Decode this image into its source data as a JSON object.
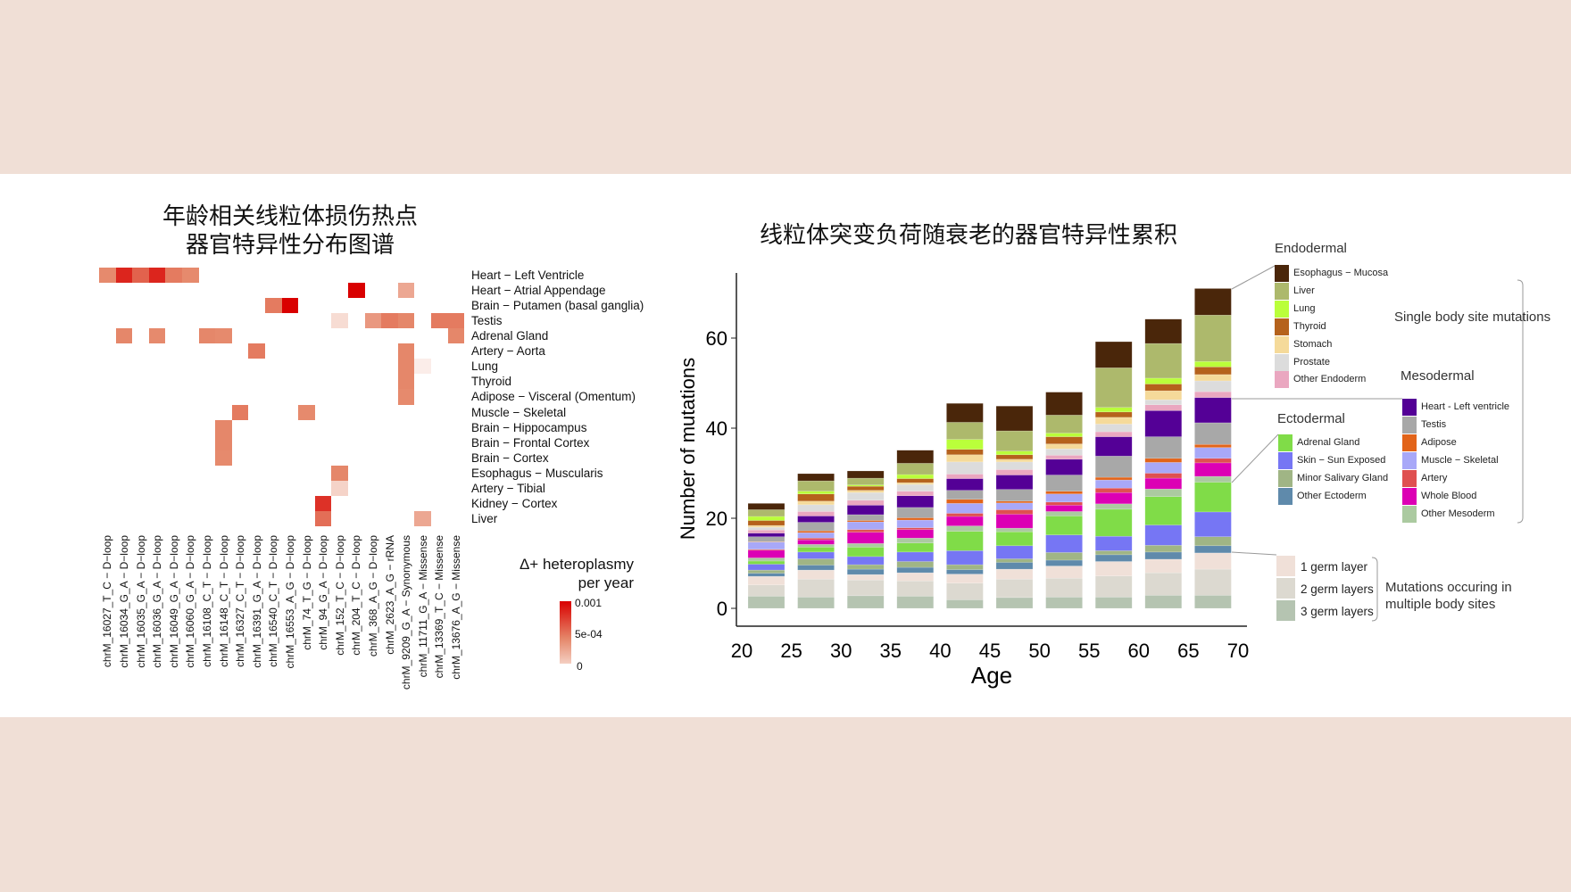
{
  "heatmap": {
    "title_line1": "年龄相关线粒体损伤热点",
    "title_line2": "器官特异性分布图谱",
    "rows": [
      "Heart − Left Ventricle",
      "Heart − Atrial Appendage",
      "Brain − Putamen (basal ganglia)",
      "Testis",
      "Adrenal Gland",
      "Artery − Aorta",
      "Lung",
      "Thyroid",
      "Adipose − Visceral (Omentum)",
      "Muscle − Skeletal",
      "Brain − Hippocampus",
      "Brain − Frontal Cortex",
      "Brain − Cortex",
      "Esophagus − Muscularis",
      "Artery − Tibial",
      "Kidney − Cortex",
      "Liver"
    ],
    "columns": [
      "chrM_16027_T_C − D−loop",
      "chrM_16034_G_A − D−loop",
      "chrM_16035_G_A − D−loop",
      "chrM_16036_G_A − D−loop",
      "chrM_16049_G_A − D−loop",
      "chrM_16060_G_A − D−loop",
      "chrM_16108_C_T − D−loop",
      "chrM_16148_C_T − D−loop",
      "chrM_16327_C_T − D−loop",
      "chrM_16391_G_A − D−loop",
      "chrM_16540_C_T − D−loop",
      "chrM_16553_A_G − D−loop",
      "chrM_74_T_G − D−loop",
      "chrM_94_G_A − D−loop",
      "chrM_152_T_C − D−loop",
      "chrM_204_T_C − D−loop",
      "chrM_368_A_G − D−loop",
      "chrM_2623_A_G − rRNA",
      "chrM_9209_G_A − Synonymous",
      "chrM_11711_G_A − Missense",
      "chrM_13369_T_C − Missense",
      "chrM_13676_A_G − Missense"
    ],
    "cells": [
      [
        0,
        0,
        0.0004
      ],
      [
        0,
        1,
        0.00085
      ],
      [
        0,
        2,
        0.0006
      ],
      [
        0,
        3,
        0.00085
      ],
      [
        0,
        4,
        0.0005
      ],
      [
        0,
        5,
        0.0004
      ],
      [
        1,
        15,
        0.001
      ],
      [
        1,
        18,
        0.0003
      ],
      [
        2,
        10,
        0.0005
      ],
      [
        2,
        11,
        0.001
      ],
      [
        3,
        14,
        0.00012
      ],
      [
        3,
        16,
        0.00035
      ],
      [
        3,
        17,
        0.0005
      ],
      [
        3,
        18,
        0.00045
      ],
      [
        3,
        20,
        0.0005
      ],
      [
        3,
        21,
        0.0005
      ],
      [
        4,
        1,
        0.00045
      ],
      [
        4,
        3,
        0.0004
      ],
      [
        4,
        6,
        0.00045
      ],
      [
        4,
        7,
        0.0004
      ],
      [
        4,
        21,
        0.00045
      ],
      [
        5,
        9,
        0.0005
      ],
      [
        5,
        18,
        0.00045
      ],
      [
        6,
        18,
        0.00045
      ],
      [
        6,
        19,
        6e-05
      ],
      [
        7,
        18,
        0.00045
      ],
      [
        8,
        18,
        0.0004
      ],
      [
        9,
        8,
        0.0005
      ],
      [
        9,
        12,
        0.0004
      ],
      [
        10,
        7,
        0.00045
      ],
      [
        11,
        7,
        0.00045
      ],
      [
        12,
        7,
        0.0004
      ],
      [
        13,
        14,
        0.00045
      ],
      [
        14,
        14,
        0.00015
      ],
      [
        15,
        13,
        0.0008
      ],
      [
        16,
        13,
        0.00055
      ],
      [
        16,
        19,
        0.0003
      ]
    ],
    "legend": {
      "title_line1": "Δ+ heteroplasmy",
      "title_line2": "per year",
      "ticks": [
        "0.001",
        "5e-04",
        "0"
      ],
      "range": [
        0,
        0.001
      ]
    },
    "colors": {
      "low": "#ffffff",
      "mid": "#e5876a",
      "high": "#d90000"
    }
  },
  "chart_data": {
    "type": "bar",
    "stacked": true,
    "title": "线粒体突变负荷随衰老的器官特异性累积",
    "xlabel": "Age",
    "ylabel": "Number of mutations",
    "x_ticks": [
      "20",
      "25",
      "30",
      "35",
      "40",
      "45",
      "50",
      "55",
      "60",
      "65",
      "70"
    ],
    "y_ticks": [
      "0",
      "20",
      "40",
      "60"
    ],
    "ylim": [
      0,
      72
    ],
    "xlim": [
      20,
      70
    ],
    "categories": [
      20,
      25,
      30,
      35,
      40,
      45,
      50,
      55,
      60,
      65
    ],
    "series": [
      {
        "name": "3 germ layers",
        "color": "#b5c4b1",
        "values": [
          2.7,
          2.5,
          2.8,
          2.7,
          1.9,
          2.4,
          2.5,
          2.5,
          2.9,
          2.9
        ]
      },
      {
        "name": "2 germ layers",
        "color": "#dcd9d0",
        "values": [
          2.5,
          4.0,
          3.5,
          3.4,
          3.7,
          4.1,
          4.2,
          4.7,
          5.0,
          5.8
        ]
      },
      {
        "name": "1 germ layer",
        "color": "#f0e0d8",
        "values": [
          1.9,
          2.0,
          1.2,
          1.8,
          2.0,
          2.2,
          2.7,
          3.2,
          3.0,
          3.6
        ]
      },
      {
        "name": "Other Ectoderm",
        "color": "#5f8aab",
        "values": [
          0.7,
          1.1,
          1.2,
          1.2,
          1.0,
          1.5,
          1.3,
          1.5,
          1.6,
          1.6
        ]
      },
      {
        "name": "Minor Salivary Gland",
        "color": "#a0b585",
        "values": [
          0.7,
          1.4,
          1.0,
          1.3,
          1.1,
          0.8,
          1.7,
          0.9,
          1.5,
          2.0
        ]
      },
      {
        "name": "Skin − Sun Exposed",
        "color": "#7676f4",
        "values": [
          1.3,
          1.5,
          1.8,
          2.1,
          3.1,
          2.9,
          3.9,
          3.2,
          4.5,
          5.5
        ]
      },
      {
        "name": "Adrenal Gland",
        "color": "#80dc48",
        "values": [
          0.7,
          1.1,
          2.1,
          2.0,
          4.3,
          3.1,
          4.2,
          6.0,
          6.3,
          6.6
        ]
      },
      {
        "name": "Other Mesoderm",
        "color": "#abcaa0",
        "values": [
          0.7,
          0.6,
          0.8,
          1.1,
          1.2,
          0.8,
          1.0,
          1.2,
          1.7,
          1.3
        ]
      },
      {
        "name": "Whole Blood",
        "color": "#dc00b4",
        "values": [
          1.7,
          1.0,
          2.5,
          1.9,
          2.1,
          3.1,
          1.4,
          2.5,
          2.4,
          3.0
        ]
      },
      {
        "name": "Artery",
        "color": "#df5050",
        "values": [
          0.2,
          0.4,
          0.6,
          0.4,
          0.7,
          1.0,
          0.7,
          1.0,
          1.1,
          1.0
        ]
      },
      {
        "name": "Muscle − Skeletal",
        "color": "#a8a8f8",
        "values": [
          1.6,
          1.2,
          1.7,
          1.7,
          2.2,
          1.5,
          1.8,
          1.8,
          2.4,
          2.4
        ]
      },
      {
        "name": "Adipose",
        "color": "#e2641a",
        "values": [
          0.1,
          0.4,
          0.3,
          0.5,
          0.9,
          0.4,
          0.6,
          0.6,
          0.9,
          0.7
        ]
      },
      {
        "name": "Testis",
        "color": "#a8a8a8",
        "values": [
          1.1,
          1.9,
          1.3,
          2.3,
          2.0,
          2.6,
          3.6,
          4.7,
          4.8,
          4.8
        ]
      },
      {
        "name": "Heart - Left ventricle",
        "color": "#540096",
        "values": [
          0.8,
          1.4,
          2.1,
          2.6,
          2.6,
          3.2,
          3.5,
          4.3,
          5.8,
          5.6
        ]
      },
      {
        "name": "Other Endoderm",
        "color": "#eaa7c0",
        "values": [
          0.7,
          1.0,
          1.1,
          1.0,
          1.0,
          1.2,
          0.9,
          1.1,
          1.3,
          1.3
        ]
      },
      {
        "name": "Prostate",
        "color": "#dcdcdc",
        "values": [
          0.6,
          1.5,
          1.7,
          1.5,
          2.7,
          1.7,
          1.4,
          1.7,
          1.1,
          2.4
        ]
      },
      {
        "name": "Stomach",
        "color": "#f5da9a",
        "values": [
          0.4,
          0.8,
          0.5,
          0.4,
          1.6,
          0.6,
          1.1,
          1.5,
          2.0,
          1.4
        ]
      },
      {
        "name": "Thyroid",
        "color": "#b5621c",
        "values": [
          1.1,
          1.6,
          0.9,
          0.9,
          1.2,
          1.0,
          1.6,
          1.2,
          1.5,
          1.7
        ]
      },
      {
        "name": "Lung",
        "color": "#baff3a",
        "values": [
          0.9,
          0.6,
          0.3,
          0.9,
          2.2,
          0.8,
          0.8,
          1.0,
          1.3,
          1.2
        ]
      },
      {
        "name": "Liver",
        "color": "#adb96c",
        "values": [
          1.5,
          2.3,
          1.5,
          2.5,
          3.8,
          4.5,
          4.0,
          8.8,
          7.7,
          10.3
        ]
      },
      {
        "name": "Esophagus − Mucosa",
        "color": "#4a260a",
        "values": [
          1.4,
          1.6,
          1.6,
          2.9,
          4.2,
          5.5,
          5.1,
          5.8,
          5.4,
          5.9
        ]
      }
    ],
    "legend": {
      "placement": "right",
      "groups": [
        {
          "title": "Endodermal",
          "items": [
            "Esophagus − Mucosa",
            "Liver",
            "Lung",
            "Thyroid",
            "Stomach",
            "Prostate",
            "Other Endoderm"
          ]
        },
        {
          "title": "Mesodermal",
          "items": [
            "Heart - Left ventricle",
            "Testis",
            "Adipose",
            "Muscle − Skeletal",
            "Artery",
            "Whole Blood",
            "Other Mesoderm"
          ]
        },
        {
          "title": "Ectodermal",
          "items": [
            "Adrenal Gland",
            "Skin − Sun Exposed",
            "Minor Salivary Gland",
            "Other Ectoderm"
          ]
        },
        {
          "title": "",
          "items": [
            "1 germ layer",
            "2 germ layers",
            "3 germ layers"
          ]
        }
      ],
      "single_label": "Single body site mutations",
      "multi_label_line1": "Mutations occuring in",
      "multi_label_line2": "multiple body sites"
    }
  }
}
